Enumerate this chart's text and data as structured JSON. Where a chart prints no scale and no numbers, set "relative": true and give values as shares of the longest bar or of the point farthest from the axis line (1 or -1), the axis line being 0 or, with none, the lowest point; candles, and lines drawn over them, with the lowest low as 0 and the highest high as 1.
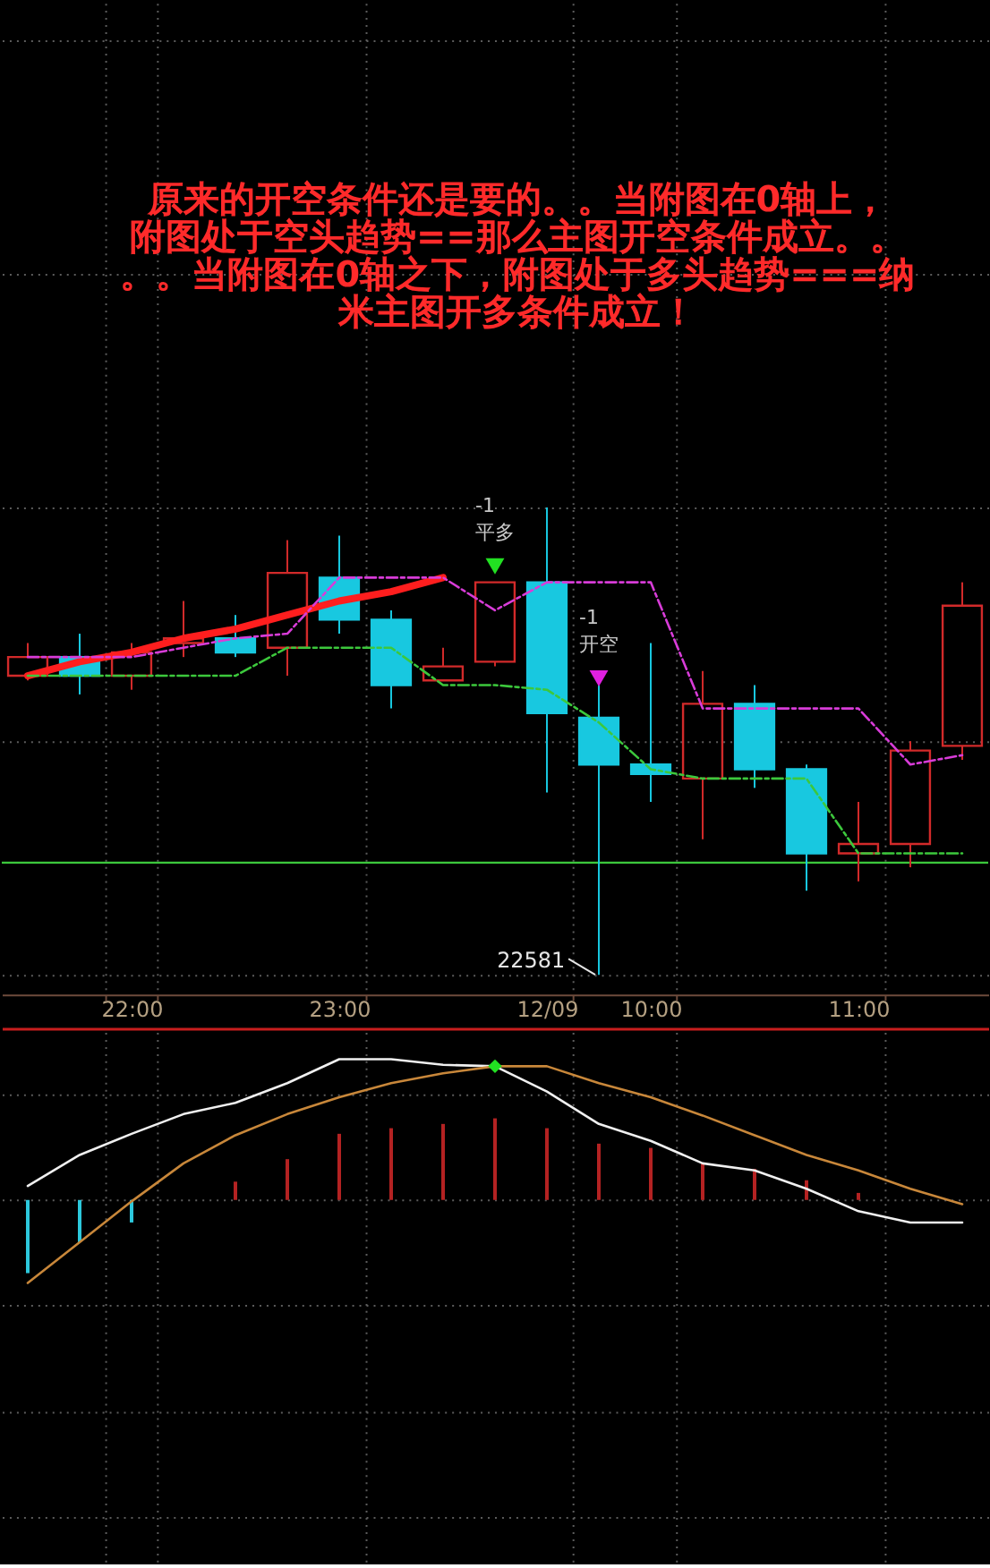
{
  "chart_data": [
    {
      "type": "candlestick",
      "relative": true,
      "categories": [
        null,
        null,
        "22:00",
        null,
        null,
        null,
        "23:00",
        null,
        null,
        null,
        "12/09",
        null,
        "10:00",
        null,
        null,
        null,
        "11:00",
        null,
        null
      ],
      "ohlc": [
        [
          0.64,
          0.71,
          0.63,
          0.68
        ],
        [
          0.68,
          0.73,
          0.6,
          0.64
        ],
        [
          0.64,
          0.71,
          0.61,
          0.69
        ],
        [
          0.71,
          0.8,
          0.68,
          0.72
        ],
        [
          0.72,
          0.77,
          0.68,
          0.69
        ],
        [
          0.7,
          0.93,
          0.64,
          0.86
        ],
        [
          0.85,
          0.94,
          0.73,
          0.76
        ],
        [
          0.76,
          0.78,
          0.57,
          0.62
        ],
        [
          0.63,
          0.7,
          0.63,
          0.66
        ],
        [
          0.67,
          0.84,
          0.66,
          0.84
        ],
        [
          0.84,
          1.0,
          0.39,
          0.56
        ],
        [
          0.55,
          0.62,
          0.0,
          0.45
        ],
        [
          0.45,
          0.71,
          0.37,
          0.43
        ],
        [
          0.42,
          0.65,
          0.29,
          0.58
        ],
        [
          0.58,
          0.62,
          0.4,
          0.44
        ],
        [
          0.44,
          0.45,
          0.18,
          0.26
        ],
        [
          0.26,
          0.37,
          0.2,
          0.28
        ],
        [
          0.28,
          0.5,
          0.23,
          0.48
        ],
        [
          0.49,
          0.84,
          0.46,
          0.79
        ]
      ],
      "colors": [
        "#d22a2a",
        "#18c8e0",
        "#d22a2a",
        "#d22a2a",
        "#18c8e0",
        "#d22a2a",
        "#18c8e0",
        "#18c8e0",
        "#d22a2a",
        "#d22a2a",
        "#18c8e0",
        "#18c8e0",
        "#18c8e0",
        "#d22a2a",
        "#18c8e0",
        "#18c8e0",
        "#d22a2a",
        "#d22a2a",
        "#d22a2a"
      ],
      "series": [
        {
          "type": "line",
          "color": "#d83cd8",
          "line_style": "dashed",
          "values": [
            0.68,
            0.68,
            0.68,
            0.7,
            0.72,
            0.73,
            0.85,
            0.85,
            0.85,
            0.78,
            0.84,
            0.84,
            0.84,
            0.57,
            0.57,
            0.57,
            0.57,
            0.45,
            0.47
          ]
        },
        {
          "type": "line",
          "color": "#3cc83c",
          "line_style": "dashed",
          "values": [
            0.64,
            0.64,
            0.64,
            0.64,
            0.64,
            0.7,
            0.7,
            0.7,
            0.62,
            0.62,
            0.61,
            0.54,
            0.44,
            0.42,
            0.42,
            0.42,
            0.26,
            0.26,
            0.26
          ]
        },
        {
          "type": "line",
          "color": "#ff1e1e",
          "line_style": "solid",
          "values": [
            0.64,
            0.67,
            0.69,
            0.72,
            0.74,
            0.77,
            0.8,
            0.82,
            0.85,
            null,
            null,
            null,
            null,
            null,
            null,
            null,
            null,
            null,
            null
          ]
        },
        {
          "type": "scatter",
          "name": "-1 平多",
          "color": "#22e022",
          "marker": "triangle",
          "values": [
            null,
            null,
            null,
            null,
            null,
            null,
            null,
            null,
            null,
            0.88,
            null,
            null,
            null,
            null,
            null,
            null,
            null,
            null,
            null
          ]
        },
        {
          "type": "scatter",
          "name": "-1 开空",
          "color": "#e020e0",
          "marker": "triangle",
          "values": [
            null,
            null,
            null,
            null,
            null,
            null,
            null,
            null,
            null,
            null,
            null,
            0.64,
            null,
            null,
            null,
            null,
            null,
            null,
            null
          ]
        }
      ],
      "ref_lines": [
        {
          "axis": "y",
          "value": 0.24,
          "color": "#3cc83c"
        }
      ],
      "annotations": [
        "原来的开空条件还是要的。。当附图在0轴上，附图处于空头趋势==那么主图开空条件成立。。。。当附图在0轴之下，附图处于多头趋势===纳米主图开多条件成立！",
        "22581"
      ],
      "grid": true
    },
    {
      "type": "line",
      "relative": true,
      "categories": [
        null,
        null,
        null,
        null,
        null,
        null,
        null,
        null,
        null,
        null,
        null,
        null,
        null,
        null,
        null,
        null,
        null,
        null,
        null
      ],
      "grid": true,
      "series": [
        {
          "type": "bar",
          "colors": [
            "#2cc8dc",
            "#2cc8dc",
            "#2cc8dc",
            null,
            "#b42222",
            "#b42222",
            "#b42222",
            "#b42222",
            "#b42222",
            "#b42222",
            "#b42222",
            "#b42222",
            "#b42222",
            "#b42222",
            "#b42222",
            "#b42222",
            "#b42222",
            null,
            null
          ],
          "values": [
            -0.52,
            -0.3,
            -0.16,
            null,
            0.13,
            0.29,
            0.47,
            0.51,
            0.54,
            0.58,
            0.51,
            0.4,
            0.37,
            0.26,
            0.22,
            0.14,
            0.05,
            null,
            null
          ]
        },
        {
          "color": "#f0f0f0",
          "values": [
            0.1,
            0.32,
            0.47,
            0.61,
            0.69,
            0.83,
            1.0,
            1.0,
            0.96,
            0.95,
            0.77,
            0.54,
            0.42,
            0.26,
            0.21,
            0.08,
            -0.08,
            -0.16,
            -0.16
          ]
        },
        {
          "color": "#c8873a",
          "values": [
            -0.59,
            -0.3,
            -0.01,
            0.26,
            0.46,
            0.61,
            0.73,
            0.83,
            0.9,
            0.95,
            0.95,
            0.83,
            0.73,
            0.6,
            0.46,
            0.32,
            0.21,
            0.08,
            -0.03
          ]
        },
        {
          "type": "scatter",
          "color": "#22e022",
          "marker": "diamond",
          "values": [
            null,
            null,
            null,
            null,
            null,
            null,
            null,
            null,
            null,
            0.95,
            null,
            null,
            null,
            null,
            null,
            null,
            null,
            null,
            null
          ]
        }
      ]
    }
  ]
}
